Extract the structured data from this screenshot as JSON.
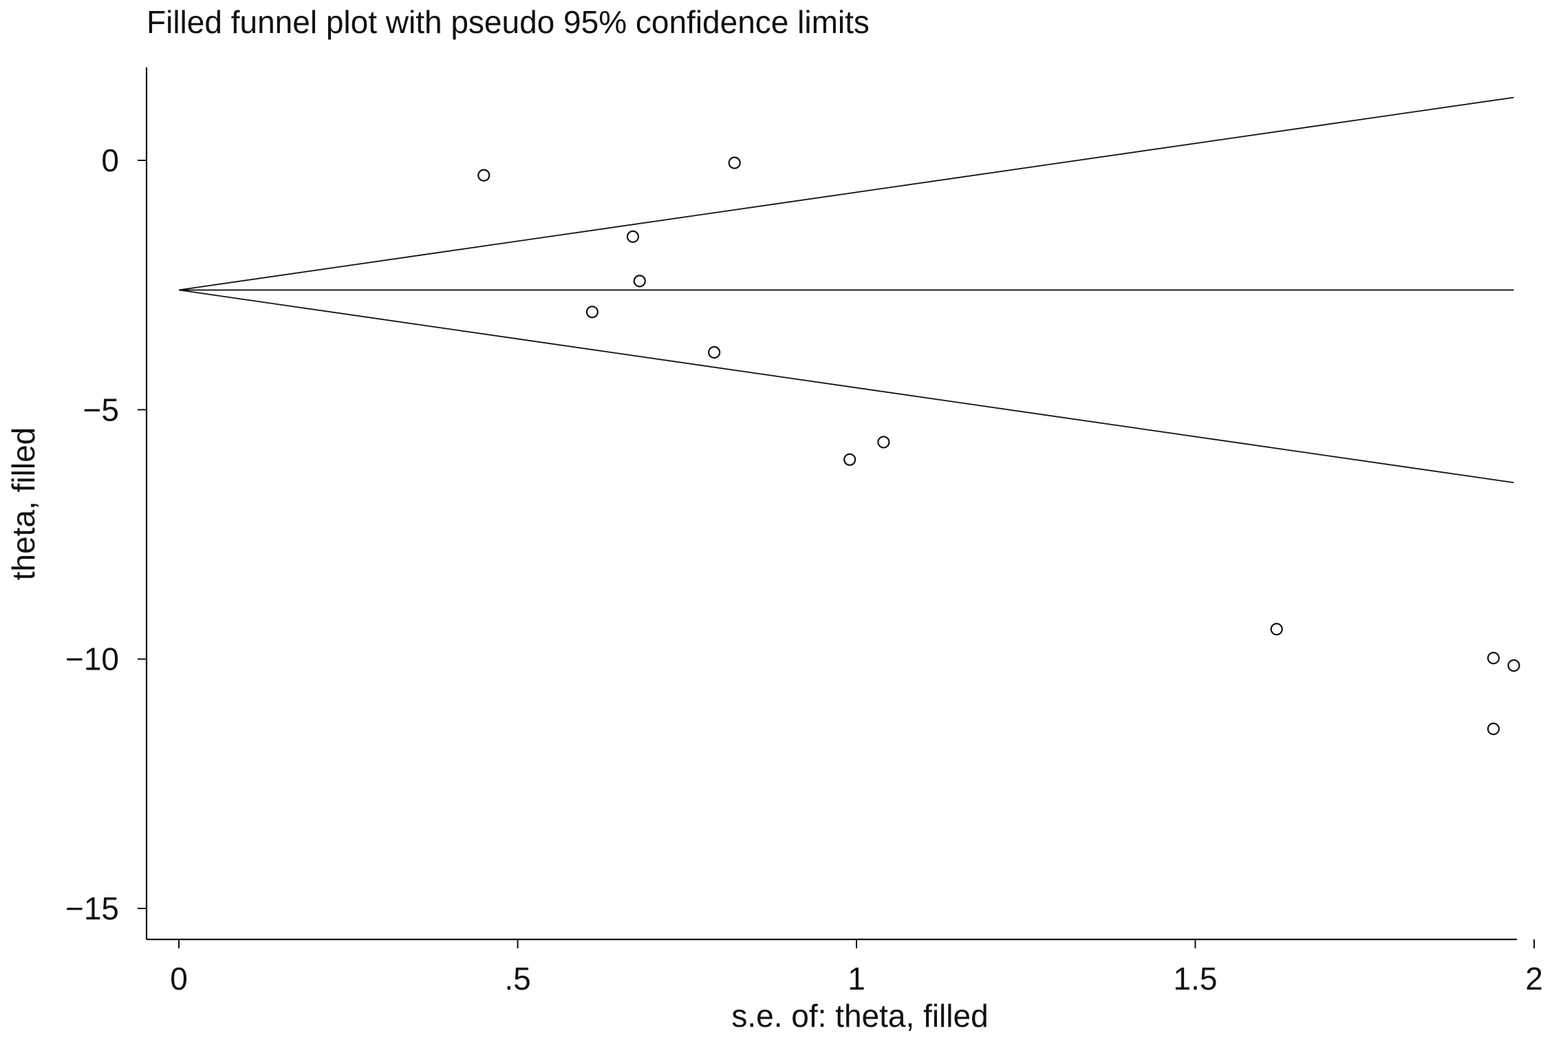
{
  "chart_data": {
    "type": "scatter",
    "title": "Filled funnel plot with pseudo 95% confidence limits",
    "xlabel": "s.e. of: theta, filled",
    "ylabel": "theta, filled",
    "xlim": [
      0,
      2
    ],
    "ylim": [
      -15,
      0
    ],
    "xticks": [
      {
        "value": 0,
        "label": "0"
      },
      {
        "value": 0.5,
        "label": ".5"
      },
      {
        "value": 1,
        "label": "1"
      },
      {
        "value": 1.5,
        "label": "1.5"
      },
      {
        "value": 2,
        "label": "2"
      }
    ],
    "yticks": [
      {
        "value": 0,
        "label": "0"
      },
      {
        "value": -5,
        "label": "−5"
      },
      {
        "value": -10,
        "label": "−10"
      },
      {
        "value": -15,
        "label": "−15"
      }
    ],
    "grid": false,
    "pooled_estimate": -2.6,
    "funnel_se_max": 1.97,
    "points": [
      {
        "x": 0.45,
        "y": -0.3
      },
      {
        "x": 0.82,
        "y": -0.05
      },
      {
        "x": 0.67,
        "y": -1.53
      },
      {
        "x": 0.68,
        "y": -2.42
      },
      {
        "x": 0.61,
        "y": -3.04
      },
      {
        "x": 0.79,
        "y": -3.85
      },
      {
        "x": 1.04,
        "y": -5.65
      },
      {
        "x": 0.99,
        "y": -6.0
      },
      {
        "x": 1.62,
        "y": -9.4
      },
      {
        "x": 1.94,
        "y": -9.98
      },
      {
        "x": 1.97,
        "y": -10.13
      },
      {
        "x": 1.94,
        "y": -11.4
      }
    ]
  }
}
